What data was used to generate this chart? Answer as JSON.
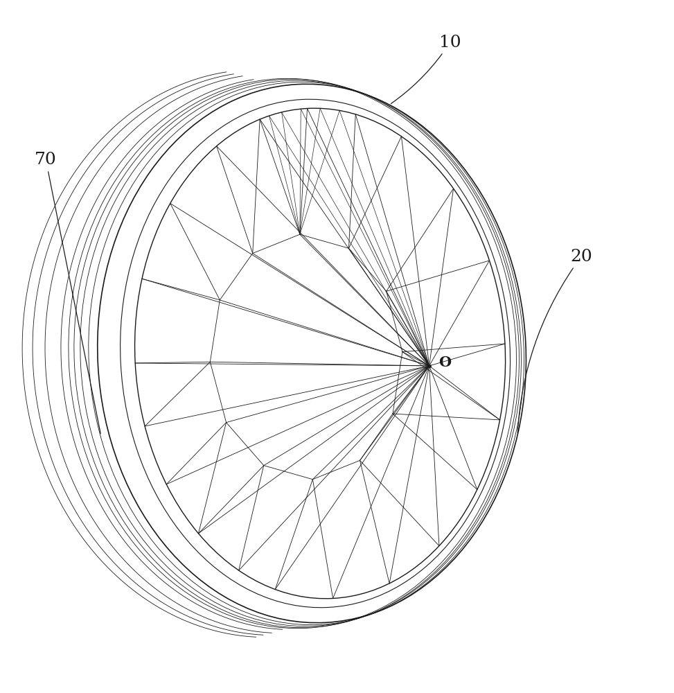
{
  "bg_color": "#ffffff",
  "line_color": "#1a1a1a",
  "lw_main": 1.0,
  "lw_thin": 0.6,
  "lw_rim": 0.8,
  "label_10": "10",
  "label_70": "70",
  "label_20": "20",
  "label_O": "O",
  "fig_w": 9.73,
  "fig_h": 10.0
}
